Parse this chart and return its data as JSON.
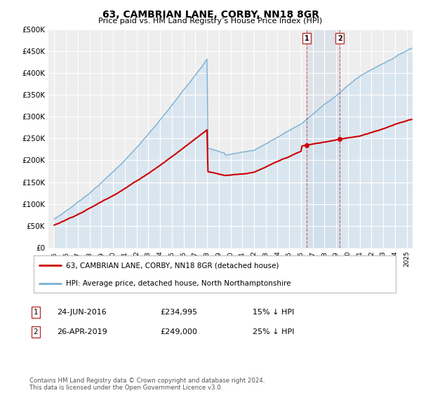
{
  "title": "63, CAMBRIAN LANE, CORBY, NN18 8GR",
  "subtitle": "Price paid vs. HM Land Registry’s House Price Index (HPI)",
  "ylabel_ticks": [
    "£0",
    "£50K",
    "£100K",
    "£150K",
    "£200K",
    "£250K",
    "£300K",
    "£350K",
    "£400K",
    "£450K",
    "£500K"
  ],
  "ytick_values": [
    0,
    50000,
    100000,
    150000,
    200000,
    250000,
    300000,
    350000,
    400000,
    450000,
    500000
  ],
  "ylim": [
    0,
    500000
  ],
  "xlim_start": 1994.5,
  "xlim_end": 2025.5,
  "hpi_color": "#7ab0d4",
  "hpi_fill_color": "#c8dff0",
  "price_color": "#cc0000",
  "sale1_date": 2016.47,
  "sale1_price": 234995,
  "sale2_date": 2019.3,
  "sale2_price": 249000,
  "sale1_label": "1",
  "sale2_label": "2",
  "sale1_text": "24-JUN-2016",
  "sale1_amount": "£234,995",
  "sale1_hpi": "15% ↓ HPI",
  "sale2_text": "26-APR-2019",
  "sale2_amount": "£249,000",
  "sale2_hpi": "25% ↓ HPI",
  "legend_line1": "63, CAMBRIAN LANE, CORBY, NN18 8GR (detached house)",
  "legend_line2": "HPI: Average price, detached house, North Northamptonshire",
  "footer": "Contains HM Land Registry data © Crown copyright and database right 2024.\nThis data is licensed under the Open Government Licence v3.0.",
  "background_color": "#ffffff",
  "plot_bg_color": "#eeeeee"
}
